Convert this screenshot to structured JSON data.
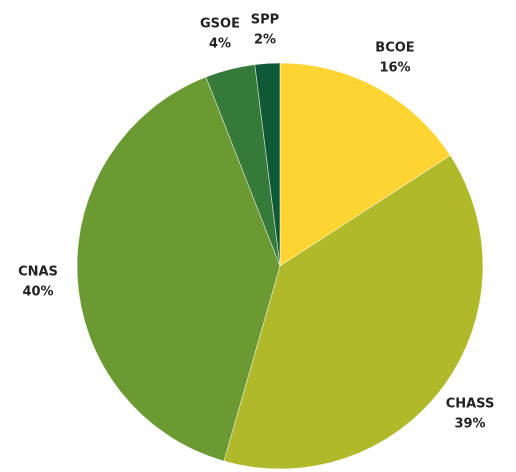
{
  "chart_data": {
    "type": "pie",
    "categories": [
      "BCOE",
      "CHASS",
      "CNAS",
      "GSOE",
      "SPP"
    ],
    "values": [
      16,
      39,
      40,
      4,
      2
    ],
    "value_labels": [
      "16%",
      "39%",
      "40%",
      "4%",
      "2%"
    ],
    "colors": [
      "#fdd431",
      "#b0b92a",
      "#6b9a33",
      "#357a38",
      "#0e5a34"
    ]
  }
}
